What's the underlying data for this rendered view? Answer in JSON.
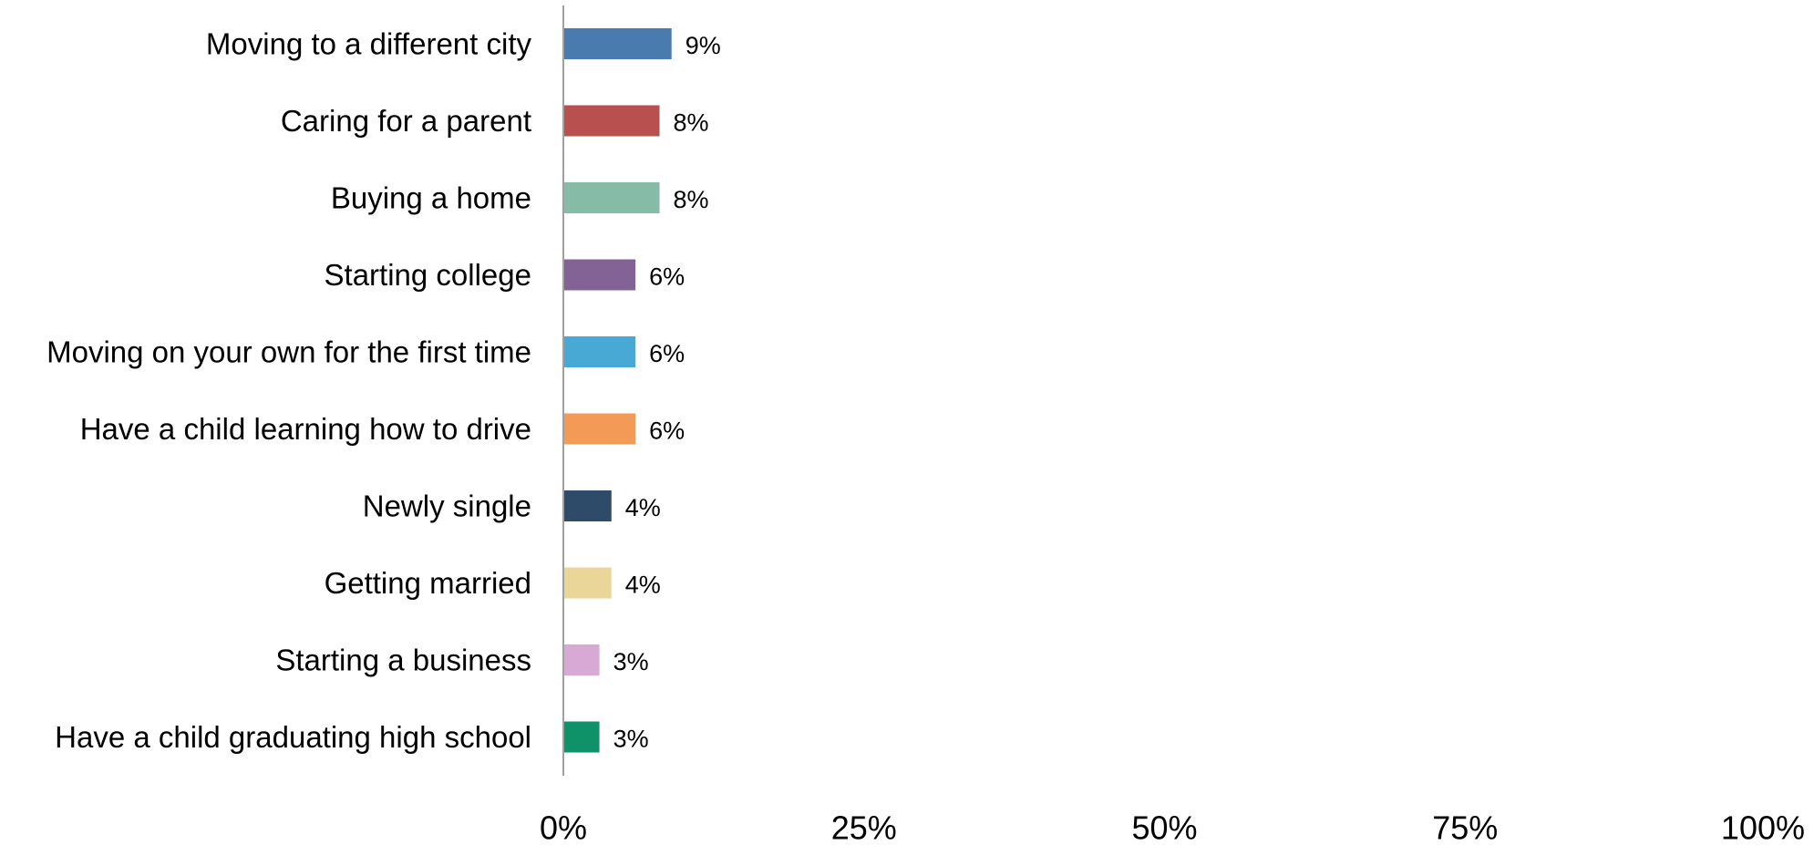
{
  "chart_data": {
    "type": "bar",
    "orientation": "horizontal",
    "title": "",
    "xlabel": "",
    "ylabel": "",
    "xlim": [
      0,
      100
    ],
    "grid": false,
    "legend": "none",
    "categories": [
      "Moving to a different city",
      "Caring for a parent",
      "Buying a home",
      "Starting college",
      "Moving on your own for the first time",
      "Have a child learning how to drive",
      "Newly single",
      "Getting married",
      "Starting a business",
      "Have a child graduating high school"
    ],
    "values": [
      9,
      8,
      8,
      6,
      6,
      6,
      4,
      4,
      3,
      3
    ],
    "value_labels": [
      "9%",
      "8%",
      "8%",
      "6%",
      "6%",
      "6%",
      "4%",
      "4%",
      "3%",
      "3%"
    ],
    "colors": [
      "#4a7bae",
      "#b85050",
      "#86bba8",
      "#836396",
      "#49a9d5",
      "#f39a57",
      "#2f4b6a",
      "#ebd699",
      "#d8a9d4",
      "#0f9268"
    ],
    "x_ticks": [
      {
        "value": 0,
        "label": "0%"
      },
      {
        "value": 25,
        "label": "25%"
      },
      {
        "value": 50,
        "label": "50%"
      },
      {
        "value": 75,
        "label": "75%"
      },
      {
        "value": 100,
        "label": "100%"
      }
    ],
    "axis_color": "#808080"
  }
}
